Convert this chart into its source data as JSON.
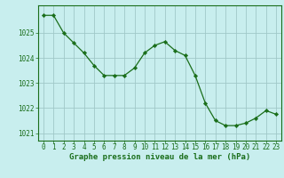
{
  "x": [
    0,
    1,
    2,
    3,
    4,
    5,
    6,
    7,
    8,
    9,
    10,
    11,
    12,
    13,
    14,
    15,
    16,
    17,
    18,
    19,
    20,
    21,
    22,
    23
  ],
  "y": [
    1025.7,
    1025.7,
    1025.0,
    1024.6,
    1024.2,
    1023.7,
    1023.3,
    1023.3,
    1023.3,
    1023.6,
    1024.2,
    1024.5,
    1024.65,
    1024.3,
    1024.1,
    1023.3,
    1022.2,
    1021.5,
    1021.3,
    1021.3,
    1021.4,
    1021.6,
    1021.9,
    1021.75
  ],
  "line_color": "#1a6e1a",
  "marker_color": "#1a6e1a",
  "bg_color": "#c8eeee",
  "grid_color": "#a0c8c8",
  "xlabel": "Graphe pression niveau de la mer (hPa)",
  "xlabel_color": "#1a6e1a",
  "tick_color": "#1a6e1a",
  "ylim": [
    1020.7,
    1026.1
  ],
  "yticks": [
    1021,
    1022,
    1023,
    1024,
    1025
  ],
  "xticks": [
    0,
    1,
    2,
    3,
    4,
    5,
    6,
    7,
    8,
    9,
    10,
    11,
    12,
    13,
    14,
    15,
    16,
    17,
    18,
    19,
    20,
    21,
    22,
    23
  ],
  "xlim": [
    -0.5,
    23.5
  ]
}
